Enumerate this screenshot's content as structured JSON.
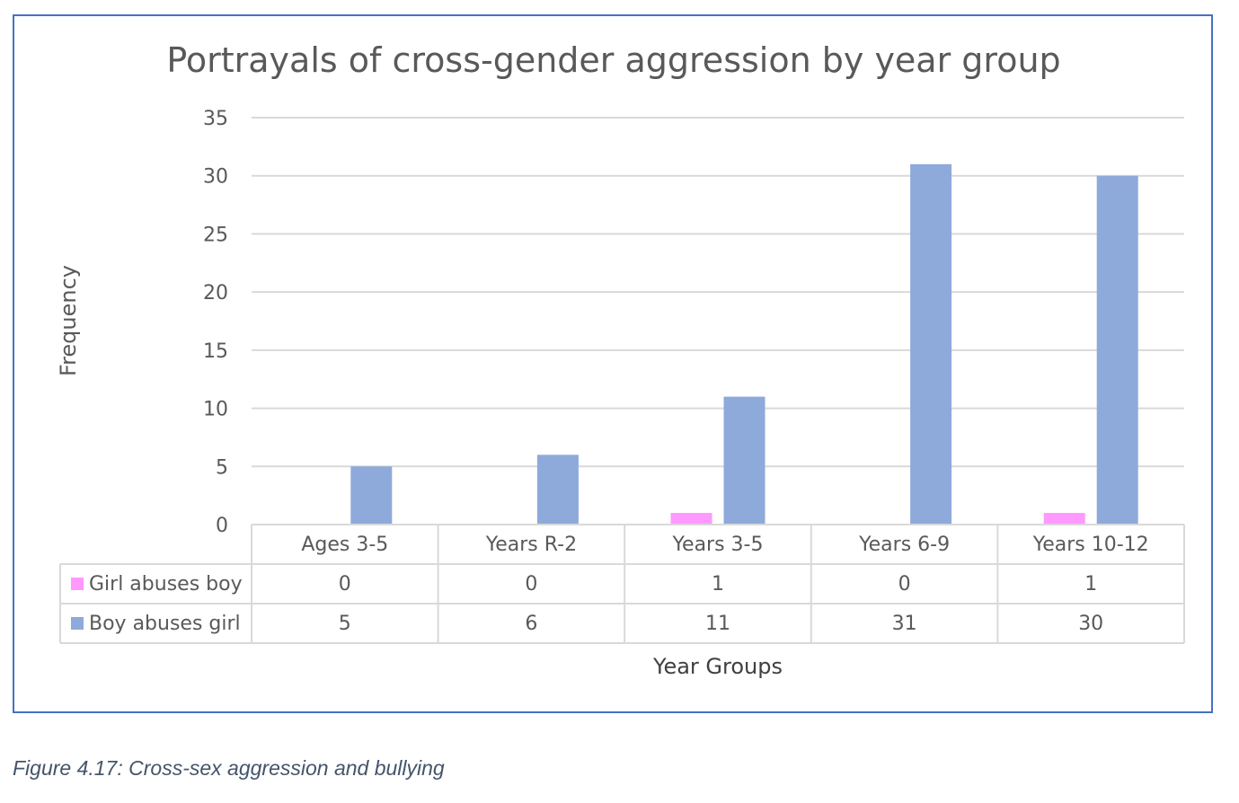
{
  "chart_data": {
    "type": "bar",
    "title": "Portrayals of cross-gender aggression by year group",
    "xlabel": "Year Groups",
    "ylabel": "Frequency",
    "categories": [
      "Ages 3-5",
      "Years R-2",
      "Years 3-5",
      "Years 6-9",
      "Years 10-12"
    ],
    "series": [
      {
        "name": "Girl abuses boy",
        "values": [
          0,
          0,
          1,
          0,
          1
        ],
        "color": "#ff99ff"
      },
      {
        "name": "Boy abuses girl",
        "values": [
          5,
          6,
          11,
          31,
          30
        ],
        "color": "#8eaadb"
      }
    ],
    "ylim": [
      0,
      35
    ],
    "yticks": [
      0,
      5,
      10,
      15,
      20,
      25,
      30,
      35
    ],
    "grid": true,
    "data_table": true
  },
  "caption": "Figure 4.17: Cross-sex aggression and bullying",
  "colors": {
    "frame": "#4472c4",
    "grid": "#d9d9d9",
    "text": "#595959"
  }
}
